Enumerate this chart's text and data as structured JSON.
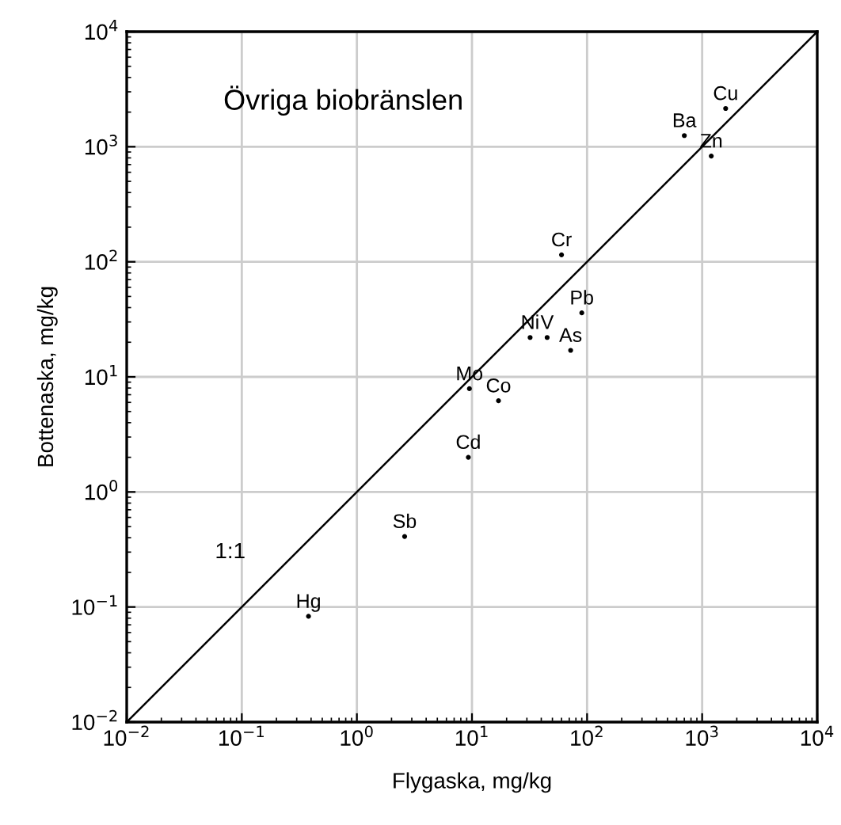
{
  "chart_data": {
    "type": "scatter",
    "xlabel": "Flygaska, mg/kg",
    "ylabel": "Bottenaska, mg/kg",
    "log": "xy",
    "grid": true,
    "marker": "circle",
    "xlim": [
      0.01,
      10000
    ],
    "ylim": [
      0.01,
      10000
    ],
    "xticks": [
      {
        "value": 0.01,
        "label": "10$^{−2}$"
      },
      {
        "value": 0.1,
        "label": "10$^{−1}$"
      },
      {
        "value": 1,
        "label": "10$^{0}$"
      },
      {
        "value": 10,
        "label": "10$^{1}$"
      },
      {
        "value": 100,
        "label": "10$^{2}$"
      },
      {
        "value": 1000,
        "label": "10$^{3}$"
      },
      {
        "value": 10000,
        "label": "10$^{4}$"
      }
    ],
    "yticks": [
      {
        "value": 0.01,
        "label": "10$^{−2}$"
      },
      {
        "value": 0.1,
        "label": "10$^{−1}$"
      },
      {
        "value": 1,
        "label": "10$^{0}$"
      },
      {
        "value": 10,
        "label": "10$^{1}$"
      },
      {
        "value": 100,
        "label": "10$^{2}$"
      },
      {
        "value": 1000,
        "label": "10$^{3}$"
      },
      {
        "value": 10000,
        "label": "10$^{4}$"
      }
    ],
    "series": [
      {
        "type": "line",
        "name": "1:1",
        "marker": "none",
        "color": "#000000",
        "x": [
          0.01,
          10000
        ],
        "values": [
          0.01,
          10000
        ]
      },
      {
        "name": "Cu",
        "color": "#000000",
        "x": [
          1600
        ],
        "values": [
          2150
        ]
      },
      {
        "name": "Ba",
        "color": "#000000",
        "x": [
          700
        ],
        "values": [
          1250
        ]
      },
      {
        "name": "Zn",
        "color": "#000000",
        "x": [
          1200
        ],
        "values": [
          830
        ]
      },
      {
        "name": "Cr",
        "color": "#000000",
        "x": [
          60
        ],
        "values": [
          115
        ]
      },
      {
        "name": "Pb",
        "color": "#000000",
        "x": [
          90
        ],
        "values": [
          36
        ]
      },
      {
        "name": "Ni",
        "color": "#000000",
        "x": [
          32
        ],
        "values": [
          22
        ]
      },
      {
        "name": "V",
        "color": "#000000",
        "x": [
          45
        ],
        "values": [
          22
        ]
      },
      {
        "name": "As",
        "color": "#000000",
        "x": [
          72
        ],
        "values": [
          17
        ]
      },
      {
        "name": "Mo",
        "color": "#000000",
        "x": [
          9.5
        ],
        "values": [
          7.9
        ]
      },
      {
        "name": "Co",
        "color": "#000000",
        "x": [
          17
        ],
        "values": [
          6.2
        ]
      },
      {
        "name": "Cd",
        "color": "#000000",
        "x": [
          9.3
        ],
        "values": [
          2
        ]
      },
      {
        "name": "Sb",
        "color": "#000000",
        "x": [
          2.6
        ],
        "values": [
          0.41
        ]
      },
      {
        "name": "Hg",
        "color": "#000000",
        "x": [
          0.38
        ],
        "values": [
          0.083
        ]
      }
    ],
    "annotations": [
      "Övriga biobränslen"
    ]
  }
}
